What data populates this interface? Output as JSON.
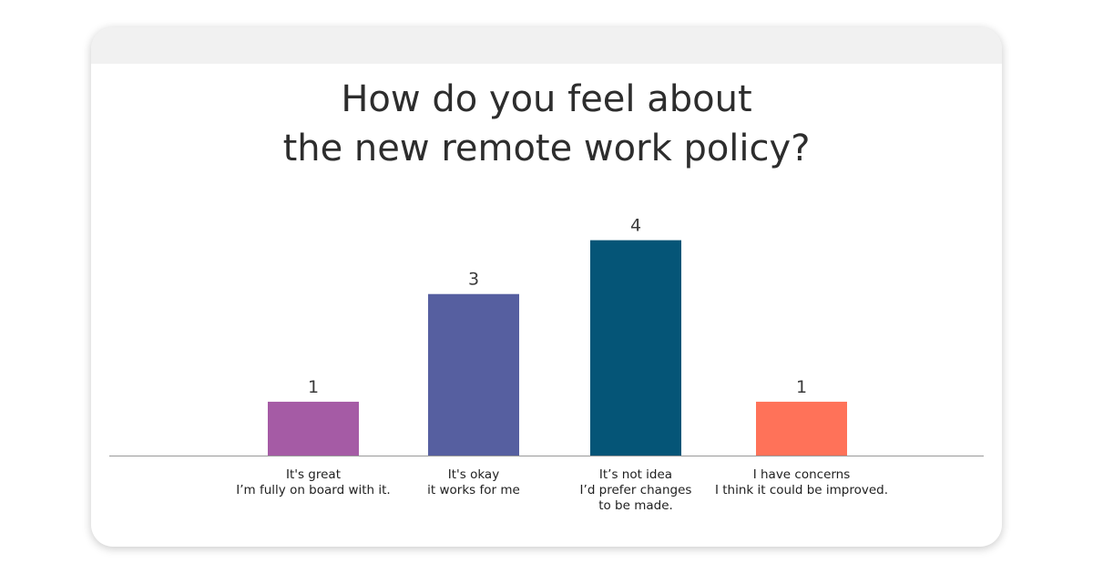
{
  "chart_data": {
    "type": "bar",
    "title": "How do you feel about\nthe new remote work policy?",
    "categories": [
      [
        "It's great",
        "I’m fully on board with it."
      ],
      [
        "It's okay",
        "it works for me"
      ],
      [
        "It’s not idea",
        "I’d prefer changes",
        "to be made."
      ],
      [
        "I have concerns",
        "I think it could be improved."
      ]
    ],
    "values": [
      1,
      3,
      4,
      1
    ],
    "colors": [
      "#a55ba5",
      "#565fa0",
      "#055577",
      "#ff7259"
    ],
    "ylim": [
      0,
      4.4
    ],
    "xlabel": "",
    "ylabel": "",
    "grid": false,
    "legend": "none",
    "value_labels": true
  },
  "theme": {
    "card_background": "#ffffff",
    "header_band": "#f1f1f1",
    "text_color": "#2d2d2d",
    "axis_color": "#999999"
  }
}
